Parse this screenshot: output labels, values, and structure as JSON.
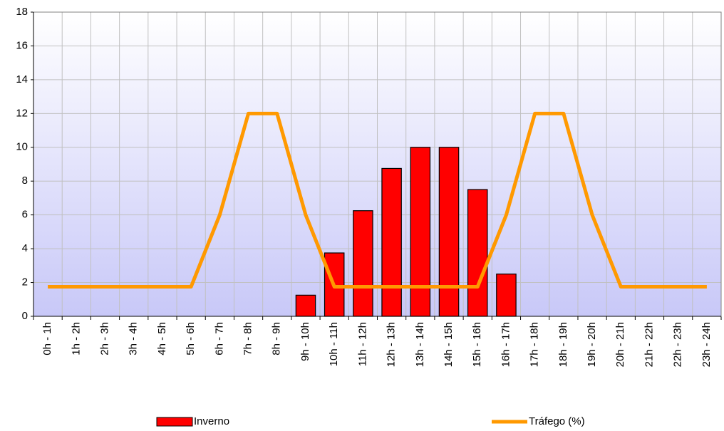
{
  "chart_data": {
    "type": "bar_line",
    "categories": [
      "0h - 1h",
      "1h - 2h",
      "2h - 3h",
      "3h - 4h",
      "4h - 5h",
      "5h - 6h",
      "6h - 7h",
      "7h - 8h",
      "8h - 9h",
      "9h - 10h",
      "10h - 11h",
      "11h - 12h",
      "12h - 13h",
      "13h - 14h",
      "14h - 15h",
      "15h - 16h",
      "16h - 17h",
      "17h - 18h",
      "18h - 19h",
      "19h - 20h",
      "20h - 21h",
      "21h - 22h",
      "22h - 23h",
      "23h - 24h"
    ],
    "series": [
      {
        "name": "Inverno",
        "type": "bar",
        "color": "#ff0000",
        "values": [
          null,
          null,
          null,
          null,
          null,
          null,
          null,
          null,
          null,
          1.25,
          3.75,
          6.25,
          8.75,
          10,
          10,
          7.5,
          2.5,
          null,
          null,
          null,
          null,
          null,
          null,
          null
        ]
      },
      {
        "name": "Tráfego (%)",
        "type": "line",
        "color": "#ff9900",
        "values": [
          1.75,
          1.75,
          1.75,
          1.75,
          1.75,
          1.75,
          6,
          12,
          12,
          6,
          1.75,
          1.75,
          1.75,
          1.75,
          1.75,
          1.75,
          6,
          12,
          12,
          6,
          1.75,
          1.75,
          1.75,
          1.75
        ]
      }
    ],
    "ylim": [
      0,
      18
    ],
    "yticks": [
      0,
      2,
      4,
      6,
      8,
      10,
      12,
      14,
      16,
      18
    ],
    "grid": true
  }
}
